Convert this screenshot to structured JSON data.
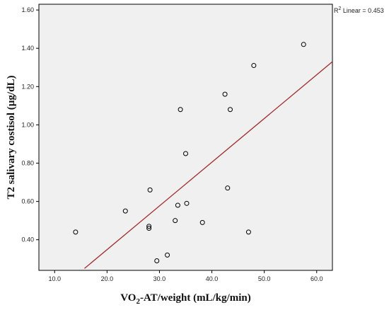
{
  "chart_data": {
    "type": "scatter",
    "xlabel_main": "VO",
    "xlabel_sub": "2",
    "xlabel_rest": "-AT/weight (mL/kg/min)",
    "ylabel": "T2 salivary costisol (µg/dL)",
    "xlim": [
      7.0,
      63.0
    ],
    "ylim": [
      0.24,
      1.63
    ],
    "xticks": [
      10.0,
      20.0,
      30.0,
      40.0,
      50.0,
      60.0
    ],
    "xtick_labels": [
      "10.0",
      "20.0",
      "30.0",
      "40.0",
      "50.0",
      "60.0"
    ],
    "yticks": [
      0.4,
      0.6,
      0.8,
      1.0,
      1.2,
      1.4,
      1.6
    ],
    "ytick_labels": [
      "0.40",
      "0.60",
      "0.80",
      "1.00",
      "1.20",
      "1.40",
      "1.60"
    ],
    "points": [
      {
        "x": 14.0,
        "y": 0.44
      },
      {
        "x": 23.5,
        "y": 0.55
      },
      {
        "x": 28.0,
        "y": 0.47
      },
      {
        "x": 28.0,
        "y": 0.46
      },
      {
        "x": 28.2,
        "y": 0.66
      },
      {
        "x": 29.5,
        "y": 0.29
      },
      {
        "x": 31.5,
        "y": 0.32
      },
      {
        "x": 33.0,
        "y": 0.5
      },
      {
        "x": 33.5,
        "y": 0.58
      },
      {
        "x": 34.0,
        "y": 1.08
      },
      {
        "x": 35.0,
        "y": 0.85
      },
      {
        "x": 35.2,
        "y": 0.59
      },
      {
        "x": 38.2,
        "y": 0.49
      },
      {
        "x": 42.5,
        "y": 1.16
      },
      {
        "x": 43.0,
        "y": 0.67
      },
      {
        "x": 43.5,
        "y": 1.08
      },
      {
        "x": 47.0,
        "y": 0.44
      },
      {
        "x": 48.0,
        "y": 1.31
      },
      {
        "x": 57.5,
        "y": 1.42
      }
    ],
    "fit_line": {
      "x": [
        15.7,
        63.0
      ],
      "y": [
        0.25,
        1.33
      ],
      "color": "#a52a2a"
    },
    "r2_label_prefix": "R",
    "r2_label_sup": "2",
    "r2_label_rest": " Linear = 0.453",
    "plot_background": "#f0f0f0",
    "marker_color": "#000000",
    "grid": false,
    "legend": "none"
  }
}
